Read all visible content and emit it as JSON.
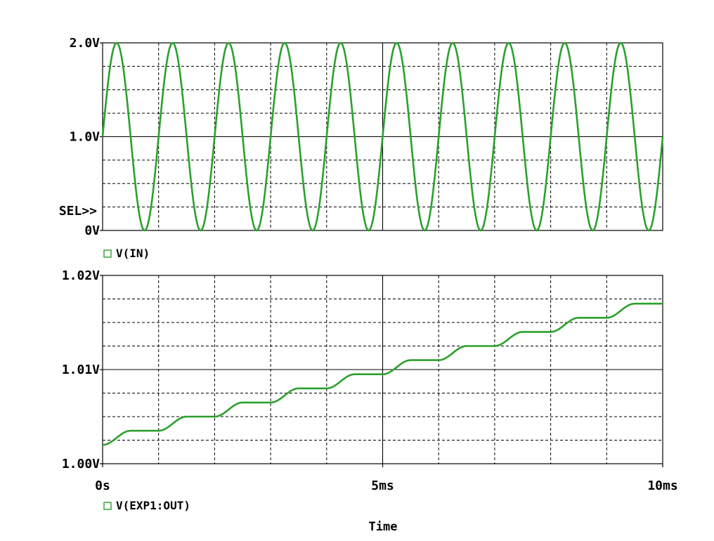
{
  "colors": {
    "trace": "#2ca02c",
    "grid": "#000000",
    "background": "#ffffff",
    "legend_marker": "#2ca02c"
  },
  "selection_marker": "SEL>>",
  "x_axis": {
    "label": "Time",
    "ticks": [
      "0s",
      "5ms",
      "10ms"
    ],
    "range_ms": [
      0,
      10
    ],
    "major_every_ms": 5,
    "minor_every_ms": 1
  },
  "chart_data": [
    {
      "type": "line",
      "legend": "V(IN)",
      "legend_icon": "square-marker-icon",
      "ylim": [
        0,
        2.0
      ],
      "y_ticks": [
        "2.0V",
        "1.0V",
        "0V"
      ],
      "y_major": [
        0,
        1.0,
        2.0
      ],
      "y_minor_every": 0.25,
      "series": [
        {
          "name": "V(IN)",
          "description": "sine wave, offset 1.0 V, amplitude 1.0 V, frequency 1 kHz",
          "x_ms": [
            0,
            0.25,
            0.5,
            0.75,
            1.0,
            1.25,
            1.5,
            1.75,
            2.0,
            2.25,
            2.5,
            2.75,
            3.0,
            3.25,
            3.5,
            3.75,
            4.0,
            4.25,
            4.5,
            4.75,
            5.0,
            5.25,
            5.5,
            5.75,
            6.0,
            6.25,
            6.5,
            6.75,
            7.0,
            7.25,
            7.5,
            7.75,
            8.0,
            8.25,
            8.5,
            8.75,
            9.0,
            9.25,
            9.5,
            9.75,
            10.0
          ],
          "y": [
            1.0,
            2.0,
            1.0,
            0.0,
            1.0,
            2.0,
            1.0,
            0.0,
            1.0,
            2.0,
            1.0,
            0.0,
            1.0,
            2.0,
            1.0,
            0.0,
            1.0,
            2.0,
            1.0,
            0.0,
            1.0,
            2.0,
            1.0,
            0.0,
            1.0,
            2.0,
            1.0,
            0.0,
            1.0,
            2.0,
            1.0,
            0.0,
            1.0,
            2.0,
            1.0,
            0.0,
            1.0,
            2.0,
            1.0,
            0.0,
            1.0
          ]
        }
      ]
    },
    {
      "type": "line",
      "legend": "V(EXP1:OUT)",
      "legend_icon": "square-marker-icon",
      "ylim": [
        1.0,
        1.02
      ],
      "y_ticks": [
        "1.02V",
        "1.01V",
        "1.00V"
      ],
      "y_major": [
        1.0,
        1.01,
        1.02
      ],
      "y_minor_every": 0.0025,
      "series": [
        {
          "name": "V(EXP1:OUT)",
          "description": "staircase rising ~1.5 mV per 1 ms period, smooth ramps during rising half of input",
          "x_ms": [
            0,
            0.5,
            1.0,
            1.5,
            2.0,
            2.5,
            3.0,
            3.5,
            4.0,
            4.5,
            5.0,
            5.5,
            6.0,
            6.5,
            7.0,
            7.5,
            8.0,
            8.5,
            9.0,
            9.5,
            10.0
          ],
          "y": [
            1.002,
            1.0035,
            1.0035,
            1.005,
            1.005,
            1.0065,
            1.0065,
            1.008,
            1.008,
            1.0095,
            1.0095,
            1.011,
            1.011,
            1.0125,
            1.0125,
            1.014,
            1.014,
            1.0155,
            1.0155,
            1.017,
            1.017
          ]
        }
      ]
    }
  ]
}
